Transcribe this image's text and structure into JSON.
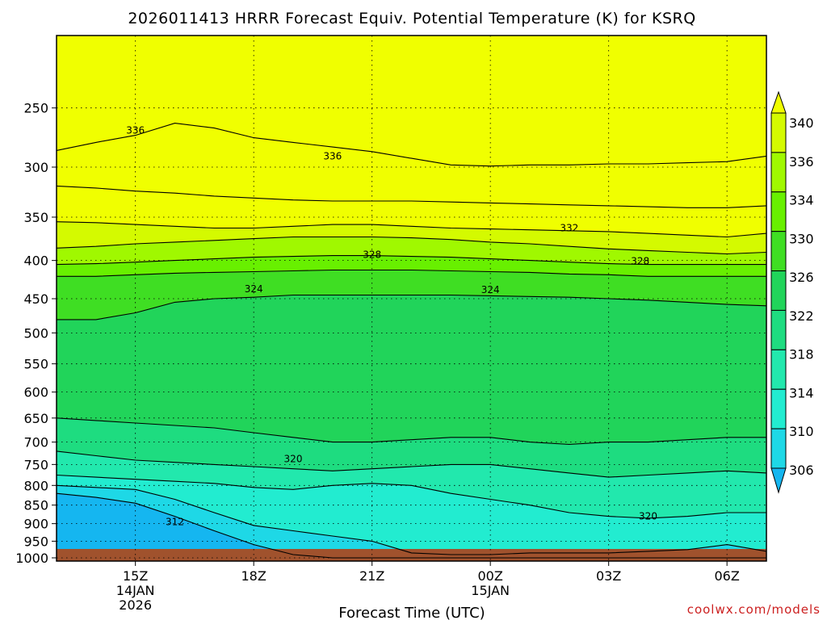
{
  "chart_data": {
    "type": "heatmap",
    "title": "2026011413 HRRR Forecast Equiv. Potential Temperature (K) for KSRQ",
    "xlabel": "Forecast Time (UTC)",
    "ylabel": "",
    "credit": "coolwx.com/models",
    "y_axis": {
      "scale": "log-pressure",
      "range_hpa": [
        1000,
        200
      ],
      "ticks": [
        1000,
        950,
        900,
        850,
        800,
        750,
        700,
        650,
        600,
        550,
        500,
        450,
        400,
        350,
        300,
        250
      ],
      "grid": "dotted"
    },
    "x_axis": {
      "range_hours": [
        0,
        18
      ],
      "ticks": [
        {
          "hour": 2,
          "label": "15Z",
          "sub1": "14JAN",
          "sub2": "2026"
        },
        {
          "hour": 5,
          "label": "18Z",
          "sub1": "",
          "sub2": ""
        },
        {
          "hour": 8,
          "label": "21Z",
          "sub1": "",
          "sub2": ""
        },
        {
          "hour": 11,
          "label": "00Z",
          "sub1": "15JAN",
          "sub2": ""
        },
        {
          "hour": 14,
          "label": "03Z",
          "sub1": "",
          "sub2": ""
        },
        {
          "hour": 17,
          "label": "06Z",
          "sub1": "",
          "sub2": ""
        }
      ],
      "grid": "dotted"
    },
    "colorbar": {
      "levels": [
        306,
        310,
        314,
        318,
        322,
        326,
        330,
        334,
        336,
        340
      ],
      "labels": [
        "306",
        "310",
        "314",
        "318",
        "322",
        "326",
        "330",
        "334",
        "336",
        "340"
      ],
      "colors": [
        "#15b6f0",
        "#1ed8e6",
        "#22ecd0",
        "#22e8ad",
        "#1edc80",
        "#21d45a",
        "#3fde23",
        "#68f000",
        "#a0f800",
        "#d4fa00",
        "#f0ff00"
      ]
    },
    "bands": [
      {
        "theta": 308,
        "boundary_hpa": [
          820,
          830,
          845,
          880,
          920,
          960,
          990,
          1000,
          1000,
          1000,
          1000,
          1000,
          1000,
          1000,
          1000,
          1000,
          1000,
          1000,
          1000
        ]
      },
      {
        "theta": 312,
        "boundary_hpa": [
          800,
          805,
          810,
          835,
          870,
          905,
          920,
          935,
          950,
          985,
          990,
          990,
          985,
          985,
          985,
          980,
          975,
          960,
          980
        ]
      },
      {
        "theta": 316,
        "boundary_hpa": [
          775,
          780,
          785,
          790,
          795,
          805,
          810,
          800,
          795,
          800,
          820,
          835,
          850,
          870,
          880,
          885,
          880,
          870,
          870
        ]
      },
      {
        "theta": 320,
        "boundary_hpa": [
          720,
          730,
          740,
          745,
          750,
          755,
          760,
          765,
          760,
          755,
          750,
          750,
          760,
          770,
          780,
          775,
          770,
          765,
          770
        ]
      },
      {
        "theta": 322,
        "boundary_hpa": [
          650,
          655,
          660,
          665,
          670,
          680,
          690,
          700,
          700,
          695,
          690,
          690,
          700,
          705,
          700,
          700,
          695,
          690,
          690
        ]
      },
      {
        "theta": 324,
        "boundary_hpa": [
          480,
          480,
          470,
          455,
          450,
          448,
          445,
          445,
          445,
          445,
          445,
          446,
          447,
          448,
          450,
          452,
          455,
          458,
          460
        ]
      },
      {
        "theta": 326,
        "boundary_hpa": [
          420,
          420,
          418,
          416,
          415,
          414,
          413,
          412,
          412,
          412,
          413,
          414,
          415,
          417,
          418,
          420,
          420,
          420,
          420
        ]
      },
      {
        "theta": 328,
        "boundary_hpa": [
          405,
          404,
          402,
          400,
          398,
          396,
          395,
          394,
          394,
          395,
          396,
          398,
          400,
          402,
          404,
          405,
          405,
          405,
          405
        ]
      },
      {
        "theta": 330,
        "boundary_hpa": [
          385,
          383,
          380,
          378,
          376,
          374,
          372,
          372,
          372,
          373,
          375,
          378,
          380,
          383,
          386,
          388,
          390,
          392,
          390
        ]
      },
      {
        "theta": 332,
        "boundary_hpa": [
          355,
          356,
          358,
          360,
          362,
          362,
          360,
          358,
          358,
          360,
          362,
          363,
          364,
          365,
          366,
          368,
          370,
          372,
          368
        ]
      },
      {
        "theta": 334,
        "boundary_hpa": [
          318,
          320,
          323,
          325,
          328,
          330,
          332,
          333,
          333,
          333,
          334,
          335,
          336,
          337,
          338,
          339,
          340,
          340,
          338
        ]
      },
      {
        "theta": 336,
        "boundary_hpa": [
          285,
          278,
          272,
          262,
          266,
          274,
          278,
          282,
          286,
          292,
          298,
          299,
          298,
          298,
          297,
          297,
          296,
          295,
          290
        ]
      },
      {
        "theta": 340,
        "boundary_hpa": [
          200,
          200,
          200,
          200,
          200,
          200,
          200,
          200,
          200,
          200,
          200,
          200,
          200,
          200,
          200,
          200,
          200,
          200,
          200
        ]
      }
    ],
    "contour_labels": [
      {
        "text": "336",
        "hour": 2.0,
        "hpa": 268
      },
      {
        "text": "336",
        "hour": 7.0,
        "hpa": 290
      },
      {
        "text": "332",
        "hour": 13.0,
        "hpa": 362
      },
      {
        "text": "328",
        "hour": 8.0,
        "hpa": 393
      },
      {
        "text": "328",
        "hour": 14.8,
        "hpa": 401
      },
      {
        "text": "324",
        "hour": 5.0,
        "hpa": 437
      },
      {
        "text": "324",
        "hour": 11.0,
        "hpa": 438
      },
      {
        "text": "320",
        "hour": 6.0,
        "hpa": 737
      },
      {
        "text": "320",
        "hour": 15.0,
        "hpa": 880
      },
      {
        "text": "312",
        "hour": 3.0,
        "hpa": 895
      }
    ],
    "ground": {
      "color": "#a0522d",
      "below_hpa": 1010
    }
  }
}
